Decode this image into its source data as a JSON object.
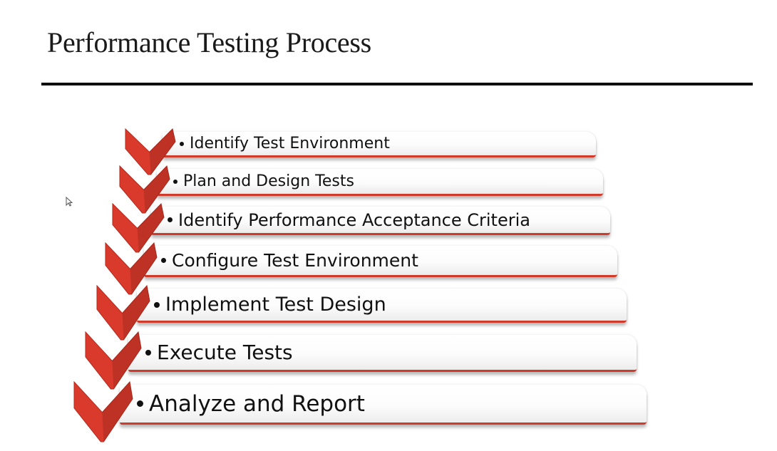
{
  "title": "Performance Testing Process",
  "accent_color": "#d93a2b",
  "steps": [
    {
      "label": "Identify Test Environment"
    },
    {
      "label": "Plan and Design Tests"
    },
    {
      "label": "Identify Performance Acceptance Criteria"
    },
    {
      "label": "Configure Test Environment"
    },
    {
      "label": "Implement Test Design"
    },
    {
      "label": "Execute Tests"
    },
    {
      "label": "Analyze and Report"
    }
  ],
  "icons": {
    "cursor": "mouse-pointer-icon",
    "step_marker": "chevron-down-icon"
  }
}
